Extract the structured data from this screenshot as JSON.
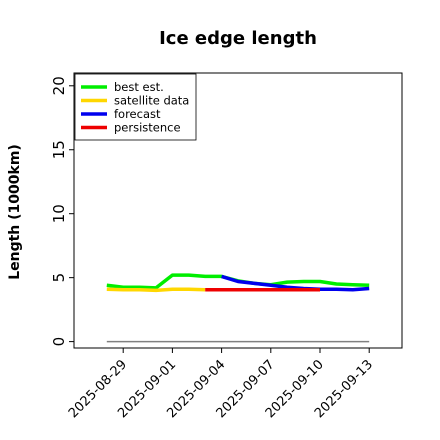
{
  "chart_data": {
    "type": "line",
    "title": "Ice edge length",
    "xlabel": "",
    "ylabel": "Length (1000km)",
    "ylim": [
      -0.5,
      21
    ],
    "yticks": [
      0,
      5,
      10,
      15,
      20
    ],
    "xlim": [
      "2025-08-26",
      "2025-09-15"
    ],
    "xticks": [
      "2025-08-29",
      "2025-09-01",
      "2025-09-04",
      "2025-09-07",
      "2025-09-10",
      "2025-09-13"
    ],
    "highlight_tick": "2025-09-04",
    "highlight_color": "#228b22",
    "grid": false,
    "legend_position": "top-left",
    "baseline": {
      "x": [
        "2025-08-28",
        "2025-09-13"
      ],
      "y": 0,
      "color": "#808080"
    },
    "series": [
      {
        "name": "best est.",
        "color": "#00ee00",
        "x": [
          "2025-08-28",
          "2025-08-29",
          "2025-08-30",
          "2025-08-31",
          "2025-09-01",
          "2025-09-02",
          "2025-09-03",
          "2025-09-04",
          "2025-09-05",
          "2025-09-06",
          "2025-09-07",
          "2025-09-08",
          "2025-09-09",
          "2025-09-10",
          "2025-09-11",
          "2025-09-12",
          "2025-09-13"
        ],
        "y": [
          4.4,
          4.25,
          4.25,
          4.2,
          5.2,
          5.2,
          5.1,
          5.1,
          4.75,
          4.55,
          4.45,
          4.65,
          4.7,
          4.7,
          4.5,
          4.45,
          4.4
        ]
      },
      {
        "name": "satellite data",
        "color": "#ffd700",
        "x": [
          "2025-08-28",
          "2025-08-29",
          "2025-08-30",
          "2025-08-31",
          "2025-09-01",
          "2025-09-02",
          "2025-09-03"
        ],
        "y": [
          4.1,
          4.05,
          4.05,
          4.0,
          4.1,
          4.1,
          4.05
        ]
      },
      {
        "name": "forecast",
        "color": "#0000ee",
        "x": [
          "2025-09-04",
          "2025-09-05",
          "2025-09-06",
          "2025-09-07",
          "2025-09-08",
          "2025-09-09",
          "2025-09-10",
          "2025-09-11",
          "2025-09-12",
          "2025-09-13"
        ],
        "y": [
          5.1,
          4.7,
          4.55,
          4.4,
          4.25,
          4.15,
          4.1,
          4.1,
          4.05,
          4.15
        ]
      },
      {
        "name": "persistence",
        "color": "#ee0000",
        "x": [
          "2025-09-03",
          "2025-09-10"
        ],
        "y": [
          4.05,
          4.05
        ]
      }
    ]
  }
}
